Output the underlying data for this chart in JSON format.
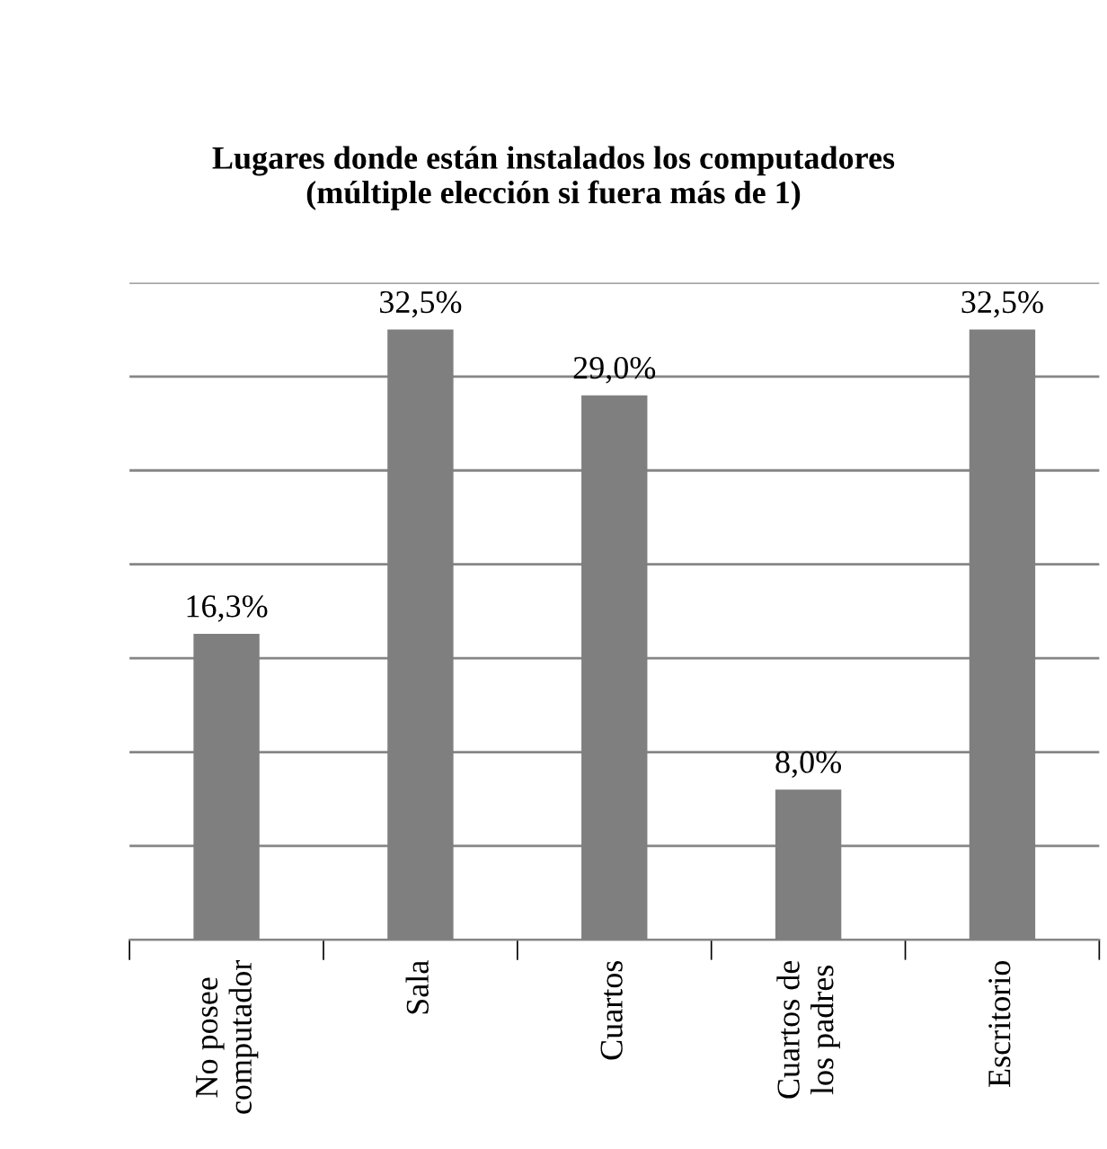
{
  "chart_data": {
    "type": "bar",
    "title": "Lugares donde están instalados los computadores\n(múltiple elección si fuera más de 1)",
    "categories": [
      "No posee\ncomputador",
      "Sala",
      "Cuartos",
      "Cuartos de\nlos padres",
      "Escritorio"
    ],
    "values": [
      16.3,
      32.5,
      29.0,
      8.0,
      32.5
    ],
    "value_labels": [
      "16,3%",
      "32,5%",
      "29,0%",
      "8,0%",
      "32,5%"
    ],
    "color": "#7f7f7f",
    "ylim": [
      0,
      35
    ],
    "yticks": [
      {
        "value": 0,
        "label": null
      },
      {
        "value": 5,
        "label": null
      },
      {
        "value": 10,
        "label": null
      },
      {
        "value": 15,
        "label": null
      },
      {
        "value": 20,
        "label": null
      },
      {
        "value": 25,
        "label": null
      },
      {
        "value": 30,
        "label": null
      },
      {
        "value": 35,
        "label": null
      }
    ],
    "grid": "y",
    "tick_labels": "x"
  }
}
